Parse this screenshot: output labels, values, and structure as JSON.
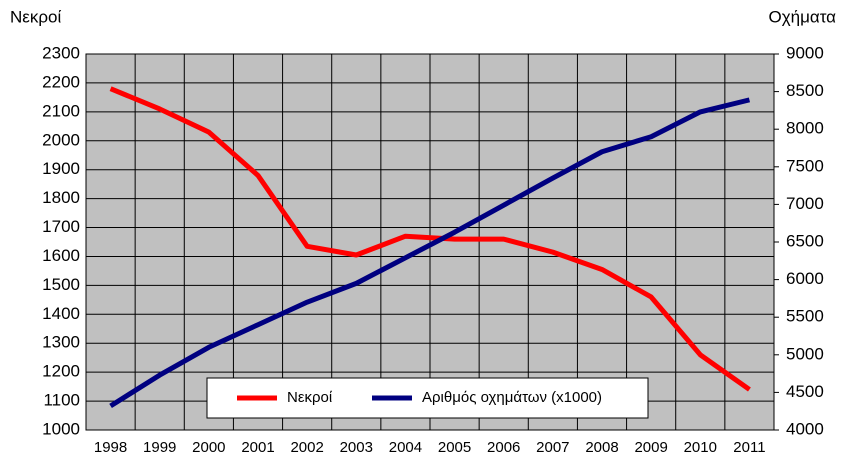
{
  "chart_data": {
    "type": "line",
    "y_label": "Νεκροί",
    "y2_label": "Οχήματα",
    "categories": [
      "1998",
      "1999",
      "2000",
      "2001",
      "2002",
      "2003",
      "2004",
      "2005",
      "2006",
      "2007",
      "2008",
      "2009",
      "2010",
      "2011"
    ],
    "series": [
      {
        "name": "Νεκροί",
        "color": "#ff0000",
        "values": [
          2180,
          2110,
          2030,
          1880,
          1635,
          1605,
          1670,
          1660,
          1660,
          1615,
          1555,
          1460,
          1260,
          1140
        ]
      },
      {
        "name": "Αριθμός οχημάτων (x1000)",
        "color": "#000080",
        "axis": "y2",
        "values": [
          4320,
          4730,
          5100,
          5400,
          5700,
          5950,
          6290,
          6630,
          6990,
          7350,
          7700,
          7900,
          8230,
          8390
        ]
      }
    ],
    "ylim": [
      1000,
      2300
    ],
    "yticks": [
      1000,
      1100,
      1200,
      1300,
      1400,
      1500,
      1600,
      1700,
      1800,
      1900,
      2000,
      2100,
      2200,
      2300
    ],
    "y2lim": [
      4000,
      9000
    ],
    "y2ticks": [
      4000,
      4500,
      5000,
      5500,
      6000,
      6500,
      7000,
      7500,
      8000,
      8500,
      9000
    ],
    "grid": true,
    "legend": "bottom"
  }
}
